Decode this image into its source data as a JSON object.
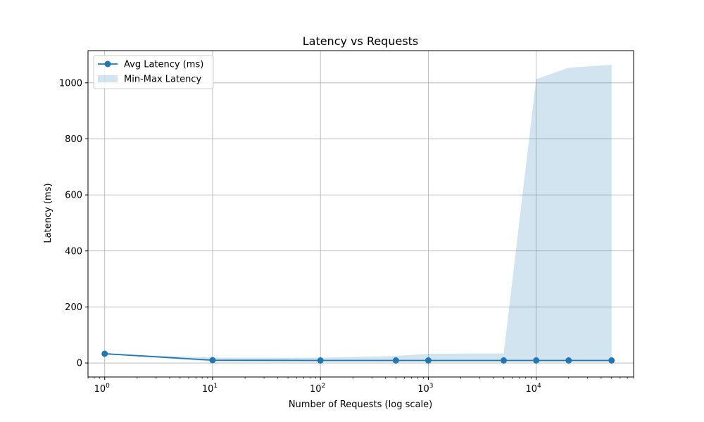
{
  "chart_data": {
    "type": "line",
    "title": "Latency vs Requests",
    "xlabel": "Number of Requests (log scale)",
    "ylabel": "Latency (ms)",
    "x_scale": "log",
    "xlim": [
      0.7,
      80000
    ],
    "ylim": [
      -50,
      1115
    ],
    "x_ticks": [
      1,
      10,
      100,
      1000,
      10000
    ],
    "x_tick_labels": [
      {
        "base": "10",
        "exp": "0"
      },
      {
        "base": "10",
        "exp": "1"
      },
      {
        "base": "10",
        "exp": "2"
      },
      {
        "base": "10",
        "exp": "3"
      },
      {
        "base": "10",
        "exp": "4"
      }
    ],
    "y_ticks": [
      0,
      200,
      400,
      600,
      800,
      1000
    ],
    "y_tick_labels": [
      "0",
      "200",
      "400",
      "600",
      "800",
      "1000"
    ],
    "grid": true,
    "legend_position": "top-left",
    "x": [
      1,
      10,
      100,
      500,
      1000,
      5000,
      10000,
      20000,
      50000
    ],
    "series": [
      {
        "name": "Avg Latency (ms)",
        "kind": "line-marker",
        "color": "#1f77b4",
        "values": [
          33,
          10,
          9,
          9,
          9,
          9,
          9,
          9,
          9
        ]
      },
      {
        "name": "Min-Max Latency",
        "kind": "band",
        "color": "#1f77b4",
        "alpha": 0.2,
        "min": [
          33,
          5,
          5,
          5,
          5,
          5,
          5,
          5,
          5
        ],
        "max": [
          33,
          19,
          19,
          25,
          33,
          34,
          1013,
          1054,
          1064
        ]
      }
    ]
  }
}
